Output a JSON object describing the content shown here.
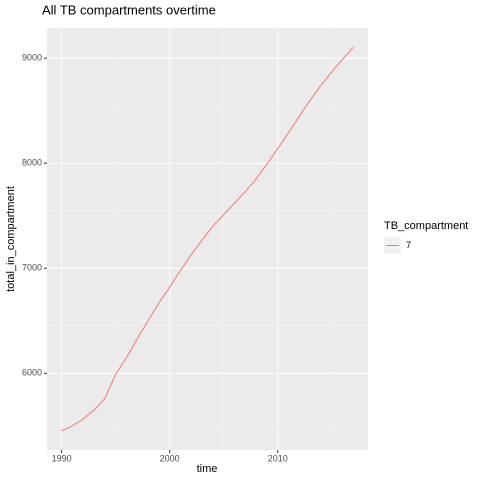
{
  "chart_data": {
    "type": "line",
    "title": "All TB compartments overtime",
    "x_label": "time",
    "y_label": "total_in_compartment",
    "x": [
      1990,
      1991,
      1992,
      1993,
      1994,
      1995,
      1996,
      1997,
      1998,
      1999,
      2000,
      2001,
      2002,
      2003,
      2004,
      2005,
      2006,
      2007,
      2008,
      2009,
      2010,
      2011,
      2012,
      2013,
      2014,
      2015,
      2016,
      2017
    ],
    "series": [
      {
        "name": "7",
        "color": "#f8766d",
        "values": [
          5453,
          5500,
          5565,
          5650,
          5760,
          5990,
          6150,
          6330,
          6500,
          6670,
          6820,
          6980,
          7130,
          7270,
          7400,
          7510,
          7620,
          7730,
          7850,
          7990,
          8140,
          8290,
          8450,
          8600,
          8740,
          8870,
          8990,
          9104
        ]
      }
    ],
    "legend_title": "TB_compartment",
    "legend": "right",
    "xlim": [
      1988.65,
      2018.35
    ],
    "xticks": [
      1990,
      2000,
      2010
    ],
    "xminor": [
      1995,
      2005,
      2015
    ],
    "ylim": [
      5270,
      9287
    ],
    "yticks": [
      6000,
      7000,
      8000,
      9000
    ],
    "yminor": [
      5500,
      6500,
      7500,
      8500,
      9000.5
    ],
    "grid": true
  }
}
